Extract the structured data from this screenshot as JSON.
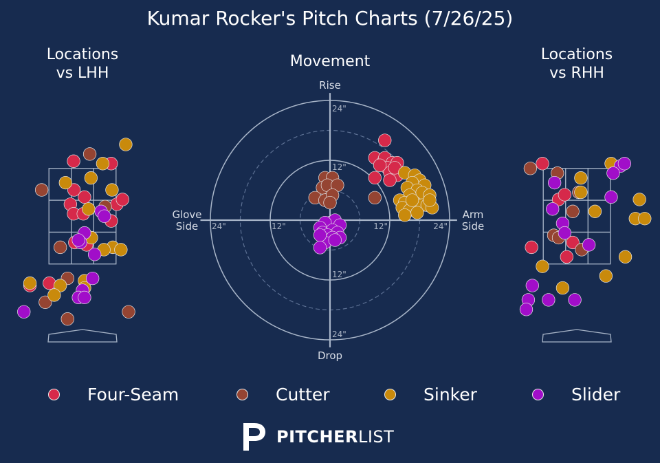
{
  "title": "Kumar Rocker's Pitch Charts (7/26/25)",
  "panels": {
    "lhh_title": "Locations\nvs LHH",
    "rhh_title": "Locations\nvs RHH",
    "movement_title": "Movement"
  },
  "colors": {
    "background": "#172b4f",
    "Four-Seam": "#d6294a",
    "Cutter": "#954432",
    "Sinker": "#c98a0c",
    "Slider": "#a10ec9"
  },
  "legend": [
    {
      "name": "Four-Seam",
      "color": "#d6294a"
    },
    {
      "name": "Cutter",
      "color": "#954432"
    },
    {
      "name": "Sinker",
      "color": "#c98a0c"
    },
    {
      "name": "Slider",
      "color": "#a10ec9"
    }
  ],
  "brand": {
    "logo_text_bold": "PITCHER",
    "logo_text_light": "LIST"
  },
  "chart_data": [
    {
      "type": "scatter",
      "title": "Locations\nvs LHH",
      "xlim": [
        -2.5,
        2.5
      ],
      "ylim": [
        -0.3,
        5.5
      ],
      "units": "ft",
      "strike_zone": {
        "x": [
          -0.83,
          0.83
        ],
        "z": [
          1.5,
          3.5
        ]
      },
      "points": [
        {
          "pitch": "Four-Seam",
          "x": -0.22,
          "z": 3.65
        },
        {
          "pitch": "Four-Seam",
          "x": 0.71,
          "z": 3.6
        },
        {
          "pitch": "Four-Seam",
          "x": -0.21,
          "z": 3.05
        },
        {
          "pitch": "Four-Seam",
          "x": 0.05,
          "z": 2.9
        },
        {
          "pitch": "Four-Seam",
          "x": -0.3,
          "z": 2.75
        },
        {
          "pitch": "Four-Seam",
          "x": 0.85,
          "z": 2.75
        },
        {
          "pitch": "Four-Seam",
          "x": -0.22,
          "z": 2.55
        },
        {
          "pitch": "Four-Seam",
          "x": 0.02,
          "z": 2.55
        },
        {
          "pitch": "Four-Seam",
          "x": 0.71,
          "z": 2.4
        },
        {
          "pitch": "Four-Seam",
          "x": 0.99,
          "z": 2.85
        },
        {
          "pitch": "Four-Seam",
          "x": -0.19,
          "z": 1.95
        },
        {
          "pitch": "Four-Seam",
          "x": 0.1,
          "z": 1.9
        },
        {
          "pitch": "Four-Seam",
          "x": -1.3,
          "z": 1.05
        },
        {
          "pitch": "Four-Seam",
          "x": -0.82,
          "z": 1.1
        },
        {
          "pitch": "Cutter",
          "x": 0.18,
          "z": 3.8
        },
        {
          "pitch": "Cutter",
          "x": -1.01,
          "z": 3.05
        },
        {
          "pitch": "Cutter",
          "x": 0.56,
          "z": 2.7
        },
        {
          "pitch": "Cutter",
          "x": -0.55,
          "z": 1.85
        },
        {
          "pitch": "Cutter",
          "x": -0.37,
          "z": 1.2
        },
        {
          "pitch": "Cutter",
          "x": -0.92,
          "z": 0.7
        },
        {
          "pitch": "Cutter",
          "x": -0.37,
          "z": 0.35
        },
        {
          "pitch": "Cutter",
          "x": 1.14,
          "z": 0.5
        },
        {
          "pitch": "Sinker",
          "x": 1.07,
          "z": 4.0
        },
        {
          "pitch": "Sinker",
          "x": 0.5,
          "z": 3.6
        },
        {
          "pitch": "Sinker",
          "x": 0.21,
          "z": 3.3
        },
        {
          "pitch": "Sinker",
          "x": -0.42,
          "z": 3.2
        },
        {
          "pitch": "Sinker",
          "x": 0.73,
          "z": 3.05
        },
        {
          "pitch": "Sinker",
          "x": 0.15,
          "z": 2.65
        },
        {
          "pitch": "Sinker",
          "x": 0.22,
          "z": 2.05
        },
        {
          "pitch": "Sinker",
          "x": 0.75,
          "z": 1.85
        },
        {
          "pitch": "Sinker",
          "x": 0.53,
          "z": 1.8
        },
        {
          "pitch": "Sinker",
          "x": 0.95,
          "z": 1.8
        },
        {
          "pitch": "Sinker",
          "x": -1.3,
          "z": 1.1
        },
        {
          "pitch": "Sinker",
          "x": -0.55,
          "z": 1.05
        },
        {
          "pitch": "Sinker",
          "x": 0.05,
          "z": 1.15
        },
        {
          "pitch": "Sinker",
          "x": -0.7,
          "z": 0.85
        },
        {
          "pitch": "Sinker",
          "x": 0.05,
          "z": 1.0
        },
        {
          "pitch": "Slider",
          "x": 0.46,
          "z": 2.6
        },
        {
          "pitch": "Slider",
          "x": 0.54,
          "z": 2.5
        },
        {
          "pitch": "Slider",
          "x": 0.05,
          "z": 2.15
        },
        {
          "pitch": "Slider",
          "x": -0.05,
          "z": 1.95
        },
        {
          "pitch": "Slider",
          "x": -0.1,
          "z": 2.0
        },
        {
          "pitch": "Slider",
          "x": 0.3,
          "z": 1.7
        },
        {
          "pitch": "Slider",
          "x": 0.0,
          "z": 0.95
        },
        {
          "pitch": "Slider",
          "x": 0.25,
          "z": 1.2
        },
        {
          "pitch": "Slider",
          "x": -0.1,
          "z": 0.8
        },
        {
          "pitch": "Slider",
          "x": 0.05,
          "z": 0.8
        },
        {
          "pitch": "Slider",
          "x": -1.45,
          "z": 0.5
        }
      ]
    },
    {
      "type": "scatter",
      "title": "Movement",
      "units": "inches",
      "rings": [
        12,
        24
      ],
      "dashed_rings": [
        6,
        18
      ],
      "axis_labels": {
        "top": "Rise",
        "bottom": "Drop",
        "left": "Glove\nSide",
        "right": "Arm\nSide"
      },
      "ring_tick_labels": [
        "12\"",
        "24\""
      ],
      "points": [
        {
          "pitch": "Four-Seam",
          "x": 11,
          "y": 16
        },
        {
          "pitch": "Four-Seam",
          "x": 9,
          "y": 12.5
        },
        {
          "pitch": "Four-Seam",
          "x": 10.5,
          "y": 11.5
        },
        {
          "pitch": "Four-Seam",
          "x": 11,
          "y": 12.5
        },
        {
          "pitch": "Four-Seam",
          "x": 12.5,
          "y": 11.5
        },
        {
          "pitch": "Four-Seam",
          "x": 13,
          "y": 10
        },
        {
          "pitch": "Four-Seam",
          "x": 11.5,
          "y": 10.5
        },
        {
          "pitch": "Four-Seam",
          "x": 13.5,
          "y": 11.5
        },
        {
          "pitch": "Four-Seam",
          "x": 12,
          "y": 9.5
        },
        {
          "pitch": "Four-Seam",
          "x": 13.5,
          "y": 9
        },
        {
          "pitch": "Four-Seam",
          "x": 9,
          "y": 8.5
        },
        {
          "pitch": "Four-Seam",
          "x": 12,
          "y": 8
        },
        {
          "pitch": "Four-Seam",
          "x": 13,
          "y": 10.5
        },
        {
          "pitch": "Four-Seam",
          "x": 10,
          "y": 11
        },
        {
          "pitch": "Cutter",
          "x": -1,
          "y": 8.5
        },
        {
          "pitch": "Cutter",
          "x": 0.5,
          "y": 8.5
        },
        {
          "pitch": "Cutter",
          "x": -1.5,
          "y": 6.5
        },
        {
          "pitch": "Cutter",
          "x": -0.5,
          "y": 7
        },
        {
          "pitch": "Cutter",
          "x": 1.5,
          "y": 7
        },
        {
          "pitch": "Cutter",
          "x": -3,
          "y": 4.5
        },
        {
          "pitch": "Cutter",
          "x": -1,
          "y": 4
        },
        {
          "pitch": "Cutter",
          "x": 0.5,
          "y": 5
        },
        {
          "pitch": "Cutter",
          "x": 0,
          "y": 3.5
        },
        {
          "pitch": "Cutter",
          "x": 9,
          "y": 4.5
        },
        {
          "pitch": "Sinker",
          "x": 15,
          "y": 9.5
        },
        {
          "pitch": "Sinker",
          "x": 17,
          "y": 9
        },
        {
          "pitch": "Sinker",
          "x": 18,
          "y": 8
        },
        {
          "pitch": "Sinker",
          "x": 16.5,
          "y": 7.5
        },
        {
          "pitch": "Sinker",
          "x": 19,
          "y": 7
        },
        {
          "pitch": "Sinker",
          "x": 15.5,
          "y": 6.5
        },
        {
          "pitch": "Sinker",
          "x": 17.5,
          "y": 6
        },
        {
          "pitch": "Sinker",
          "x": 18.5,
          "y": 5.5
        },
        {
          "pitch": "Sinker",
          "x": 20,
          "y": 5
        },
        {
          "pitch": "Sinker",
          "x": 16,
          "y": 5
        },
        {
          "pitch": "Sinker",
          "x": 14,
          "y": 4
        },
        {
          "pitch": "Sinker",
          "x": 15,
          "y": 3.5
        },
        {
          "pitch": "Sinker",
          "x": 17,
          "y": 3.5
        },
        {
          "pitch": "Sinker",
          "x": 18.5,
          "y": 3
        },
        {
          "pitch": "Sinker",
          "x": 19.5,
          "y": 3
        },
        {
          "pitch": "Sinker",
          "x": 14.5,
          "y": 2.5
        },
        {
          "pitch": "Sinker",
          "x": 16,
          "y": 2
        },
        {
          "pitch": "Sinker",
          "x": 17.5,
          "y": 1.5
        },
        {
          "pitch": "Sinker",
          "x": 20.5,
          "y": 2.5
        },
        {
          "pitch": "Sinker",
          "x": 15,
          "y": 1
        },
        {
          "pitch": "Sinker",
          "x": 20,
          "y": 4
        },
        {
          "pitch": "Sinker",
          "x": 16.5,
          "y": 4
        },
        {
          "pitch": "Slider",
          "x": 0,
          "y": -0.5
        },
        {
          "pitch": "Slider",
          "x": 1,
          "y": 0
        },
        {
          "pitch": "Slider",
          "x": -1,
          "y": -0.5
        },
        {
          "pitch": "Slider",
          "x": 2,
          "y": -1
        },
        {
          "pitch": "Slider",
          "x": -2,
          "y": -1.5
        },
        {
          "pitch": "Slider",
          "x": 0.5,
          "y": -2
        },
        {
          "pitch": "Slider",
          "x": -1.5,
          "y": -2.5
        },
        {
          "pitch": "Slider",
          "x": 1.5,
          "y": -2.5
        },
        {
          "pitch": "Slider",
          "x": -0.5,
          "y": -3
        },
        {
          "pitch": "Slider",
          "x": 2,
          "y": -3.5
        },
        {
          "pitch": "Slider",
          "x": 0.5,
          "y": -3.5
        },
        {
          "pitch": "Slider",
          "x": -1,
          "y": -4.5
        },
        {
          "pitch": "Slider",
          "x": 1,
          "y": -4
        },
        {
          "pitch": "Slider",
          "x": -2,
          "y": -3
        },
        {
          "pitch": "Slider",
          "x": -2,
          "y": -5.5
        }
      ]
    },
    {
      "type": "scatter",
      "title": "Locations\nvs RHH",
      "xlim": [
        -2.5,
        2.5
      ],
      "ylim": [
        -0.3,
        5.5
      ],
      "units": "ft",
      "strike_zone": {
        "x": [
          -0.83,
          0.83
        ],
        "z": [
          1.5,
          3.5
        ]
      },
      "points": [
        {
          "pitch": "Four-Seam",
          "x": -0.85,
          "z": 3.6
        },
        {
          "pitch": "Four-Seam",
          "x": -0.45,
          "z": 2.85
        },
        {
          "pitch": "Four-Seam",
          "x": -0.3,
          "z": 2.95
        },
        {
          "pitch": "Four-Seam",
          "x": -0.1,
          "z": 1.95
        },
        {
          "pitch": "Four-Seam",
          "x": -1.12,
          "z": 1.85
        },
        {
          "pitch": "Four-Seam",
          "x": -0.25,
          "z": 1.65
        },
        {
          "pitch": "Cutter",
          "x": -1.15,
          "z": 3.5
        },
        {
          "pitch": "Cutter",
          "x": -0.48,
          "z": 3.4
        },
        {
          "pitch": "Cutter",
          "x": 0.05,
          "z": 3.0
        },
        {
          "pitch": "Cutter",
          "x": -0.57,
          "z": 2.1
        },
        {
          "pitch": "Cutter",
          "x": -0.45,
          "z": 2.05
        },
        {
          "pitch": "Cutter",
          "x": -0.1,
          "z": 2.6
        },
        {
          "pitch": "Cutter",
          "x": 0.12,
          "z": 1.8
        },
        {
          "pitch": "Sinker",
          "x": 0.85,
          "z": 3.6
        },
        {
          "pitch": "Sinker",
          "x": 0.1,
          "z": 3.3
        },
        {
          "pitch": "Sinker",
          "x": 0.1,
          "z": 3.0
        },
        {
          "pitch": "Sinker",
          "x": 0.45,
          "z": 2.6
        },
        {
          "pitch": "Sinker",
          "x": 1.55,
          "z": 2.85
        },
        {
          "pitch": "Sinker",
          "x": 1.45,
          "z": 2.45
        },
        {
          "pitch": "Sinker",
          "x": 1.68,
          "z": 2.45
        },
        {
          "pitch": "Sinker",
          "x": 1.2,
          "z": 1.65
        },
        {
          "pitch": "Sinker",
          "x": -0.85,
          "z": 1.45
        },
        {
          "pitch": "Sinker",
          "x": 0.72,
          "z": 1.25
        },
        {
          "pitch": "Sinker",
          "x": -0.35,
          "z": 1.0
        },
        {
          "pitch": "Slider",
          "x": -0.55,
          "z": 3.2
        },
        {
          "pitch": "Slider",
          "x": 1.08,
          "z": 3.55
        },
        {
          "pitch": "Slider",
          "x": 1.18,
          "z": 3.6
        },
        {
          "pitch": "Slider",
          "x": 0.9,
          "z": 3.4
        },
        {
          "pitch": "Slider",
          "x": 0.85,
          "z": 2.9
        },
        {
          "pitch": "Slider",
          "x": -0.6,
          "z": 2.65
        },
        {
          "pitch": "Slider",
          "x": -0.35,
          "z": 2.35
        },
        {
          "pitch": "Slider",
          "x": -0.3,
          "z": 2.15
        },
        {
          "pitch": "Slider",
          "x": 0.3,
          "z": 1.9
        },
        {
          "pitch": "Slider",
          "x": -1.1,
          "z": 1.05
        },
        {
          "pitch": "Slider",
          "x": -1.2,
          "z": 0.75
        },
        {
          "pitch": "Slider",
          "x": -0.7,
          "z": 0.75
        },
        {
          "pitch": "Slider",
          "x": -0.05,
          "z": 0.75
        },
        {
          "pitch": "Slider",
          "x": -1.25,
          "z": 0.55
        }
      ]
    }
  ]
}
